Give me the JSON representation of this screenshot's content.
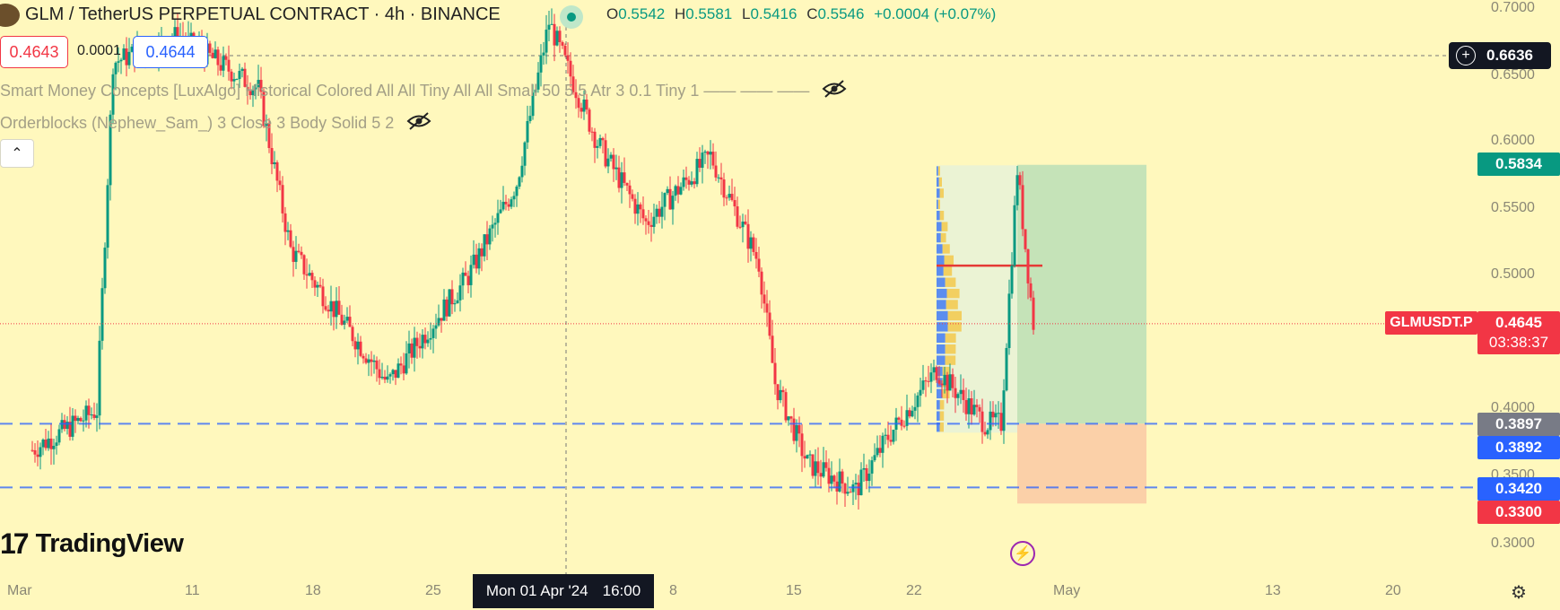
{
  "header": {
    "symbol": "GLM / TetherUS PERPETUAL CONTRACT · 4h · BINANCE",
    "ohlc": {
      "o_label": "O",
      "o": "0.5542",
      "h_label": "H",
      "h": "0.5581",
      "l_label": "L",
      "l": "0.5416",
      "c_label": "C",
      "c": "0.5546",
      "change": "+0.0004 (+0.07%)"
    }
  },
  "trade": {
    "sell": "0.4643",
    "spread": "0.0001",
    "buy": "0.4644"
  },
  "indicators": [
    "Smart Money Concepts [LuxAlgo] Historical Colored All All Tiny All All Small 50 5 5 Atr 3 0.1 Tiny 1 —— —— ——",
    "Orderblocks (Nephew_Sam_) 3 Close 3 Body Solid 5 2"
  ],
  "icons": {
    "visibility": "eye-off-icon",
    "collapse": "chevron-up-icon",
    "alert": "lightning-icon",
    "settings": "gear-icon",
    "add": "plus-circle-icon"
  },
  "collapse_glyph": "⌃",
  "price_axis": {
    "ticks": [
      "0.7000",
      "0.6500",
      "0.6000",
      "0.5500",
      "0.5000",
      "0.4000",
      "0.3500",
      "0.3000"
    ],
    "crosshair_price": "0.6636",
    "take_profit": "0.5834",
    "symbol_tag": "GLMUSDT.P",
    "last_price": "0.4645",
    "countdown": "03:38:37",
    "entry": "0.3897",
    "level_blue_1": "0.3892",
    "level_blue_2": "0.3420",
    "stop_loss": "0.3300"
  },
  "time_axis": {
    "ticks": [
      "Mar",
      "11",
      "18",
      "25",
      "8",
      "15",
      "22",
      "May",
      "13",
      "20"
    ],
    "crosshair_date": "Mon 01 Apr '24",
    "crosshair_time": "16:00"
  },
  "logo": {
    "mark": "17",
    "text": "TradingView"
  },
  "colors": {
    "background": "#fff8bd",
    "up": "#089981",
    "down": "#f23645",
    "blue_line": "#2962ff",
    "profit_zone": "#c5e3b8",
    "loss_zone": "#fbd0a8"
  },
  "chart_data": {
    "type": "candlestick",
    "interval": "4h",
    "x_start": "2024-02-25",
    "x_end": "2024-05-25",
    "ylim": [
      0.29,
      0.71
    ],
    "key_points": [
      {
        "date": "2024-02-27",
        "price": 0.37
      },
      {
        "date": "2024-03-02",
        "price": 0.4
      },
      {
        "date": "2024-03-03",
        "price": 0.66
      },
      {
        "date": "2024-03-07",
        "price": 0.68
      },
      {
        "date": "2024-03-12",
        "price": 0.64
      },
      {
        "date": "2024-03-14",
        "price": 0.52
      },
      {
        "date": "2024-03-20",
        "price": 0.42
      },
      {
        "date": "2024-03-25",
        "price": 0.5
      },
      {
        "date": "2024-03-28",
        "price": 0.57
      },
      {
        "date": "2024-03-30",
        "price": 0.69
      },
      {
        "date": "2024-04-02",
        "price": 0.6
      },
      {
        "date": "2024-04-05",
        "price": 0.54
      },
      {
        "date": "2024-04-09",
        "price": 0.59
      },
      {
        "date": "2024-04-12",
        "price": 0.51
      },
      {
        "date": "2024-04-13",
        "price": 0.42
      },
      {
        "date": "2024-04-15",
        "price": 0.36
      },
      {
        "date": "2024-04-18",
        "price": 0.34
      },
      {
        "date": "2024-04-20",
        "price": 0.38
      },
      {
        "date": "2024-04-23",
        "price": 0.43
      },
      {
        "date": "2024-04-26",
        "price": 0.39
      },
      {
        "date": "2024-04-27",
        "price": 0.39
      },
      {
        "date": "2024-04-28",
        "price": 0.58
      },
      {
        "date": "2024-04-29",
        "price": 0.4645
      }
    ],
    "horizontal_lines": [
      0.3897,
      0.342
    ],
    "position": {
      "entry": 0.3897,
      "take_profit": 0.5834,
      "stop_loss": 0.33,
      "date_start": "2024-04-28",
      "date_end": "2024-05-06"
    },
    "volume_profile": {
      "date_start": "2024-04-23",
      "date_end": "2024-04-28",
      "price_low": 0.383,
      "price_high": 0.583,
      "poc": 0.508
    }
  }
}
